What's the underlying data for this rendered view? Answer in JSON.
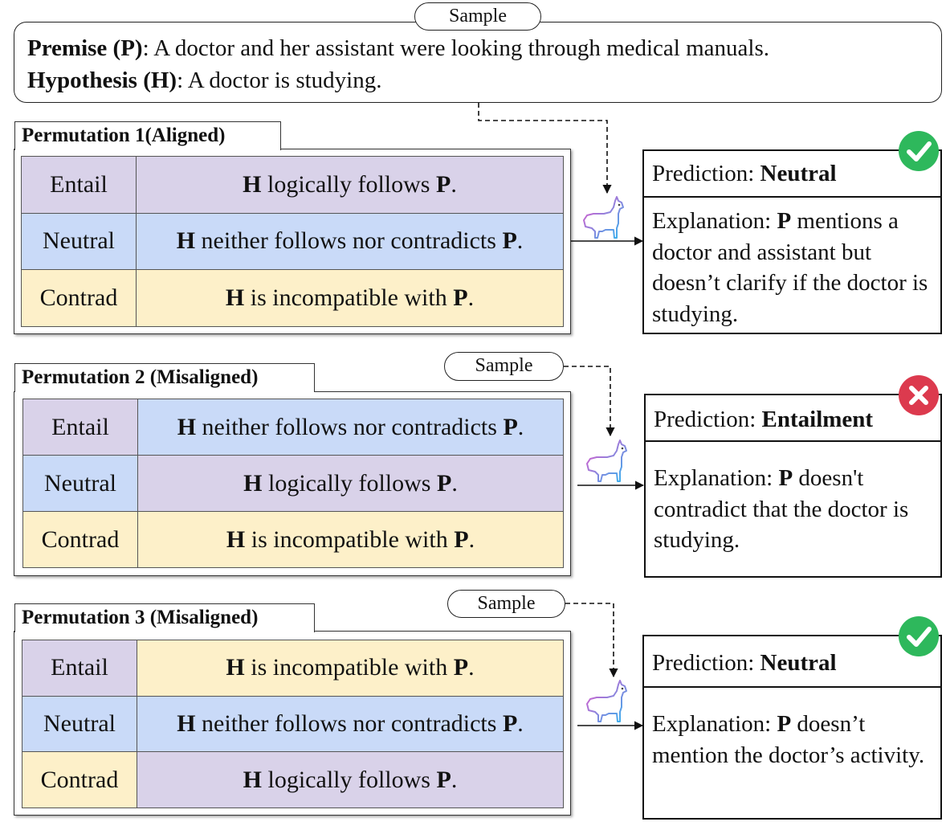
{
  "sample_label": "Sample",
  "premise": {
    "label": "Premise (P)",
    "text": ": A doctor and her assistant were looking through medical manuals."
  },
  "hypothesis": {
    "label": "Hypothesis (H)",
    "text": ": A doctor is studying."
  },
  "prediction_prefix": "Prediction: ",
  "explanation_prefix": "Explanation: ",
  "permutations": [
    {
      "title": "Permutation 1(Aligned)",
      "rows": [
        {
          "label": "Entail",
          "desc": "H logically follows P."
        },
        {
          "label": "Neutral",
          "desc": "H neither follows nor contradicts P."
        },
        {
          "label": "Contrad",
          "desc": "H is incompatible with P."
        }
      ],
      "prediction": "Neutral",
      "status": "correct",
      "explanation": "P mentions a doctor and assistant but doesn’t clarify if the doctor is studying."
    },
    {
      "title": "Permutation 2 (Misaligned)",
      "rows": [
        {
          "label": "Entail",
          "desc": "H neither follows nor contradicts P."
        },
        {
          "label": "Neutral",
          "desc": "H logically follows P."
        },
        {
          "label": "Contrad",
          "desc": "H is incompatible with P."
        }
      ],
      "prediction": "Entailment",
      "status": "incorrect",
      "explanation": "P doesn't contradict that the doctor is studying."
    },
    {
      "title": "Permutation 3 (Misaligned)",
      "rows": [
        {
          "label": "Entail",
          "desc": "H is incompatible with P."
        },
        {
          "label": "Neutral",
          "desc": "H neither follows nor contradicts P."
        },
        {
          "label": "Contrad",
          "desc": "H logically follows P."
        }
      ],
      "prediction": "Neutral",
      "status": "correct",
      "explanation": "P doesn’t mention the doctor’s activity."
    }
  ],
  "colors": {
    "entail": "#d9d2e9",
    "neutral": "#c9daf8",
    "contrad": "#fdf0c9",
    "correct_badge": "#2eb85c",
    "incorrect_badge": "#dc3a4e"
  },
  "icons": {
    "model": "llama-icon",
    "correct": "check-icon",
    "incorrect": "cross-icon"
  }
}
